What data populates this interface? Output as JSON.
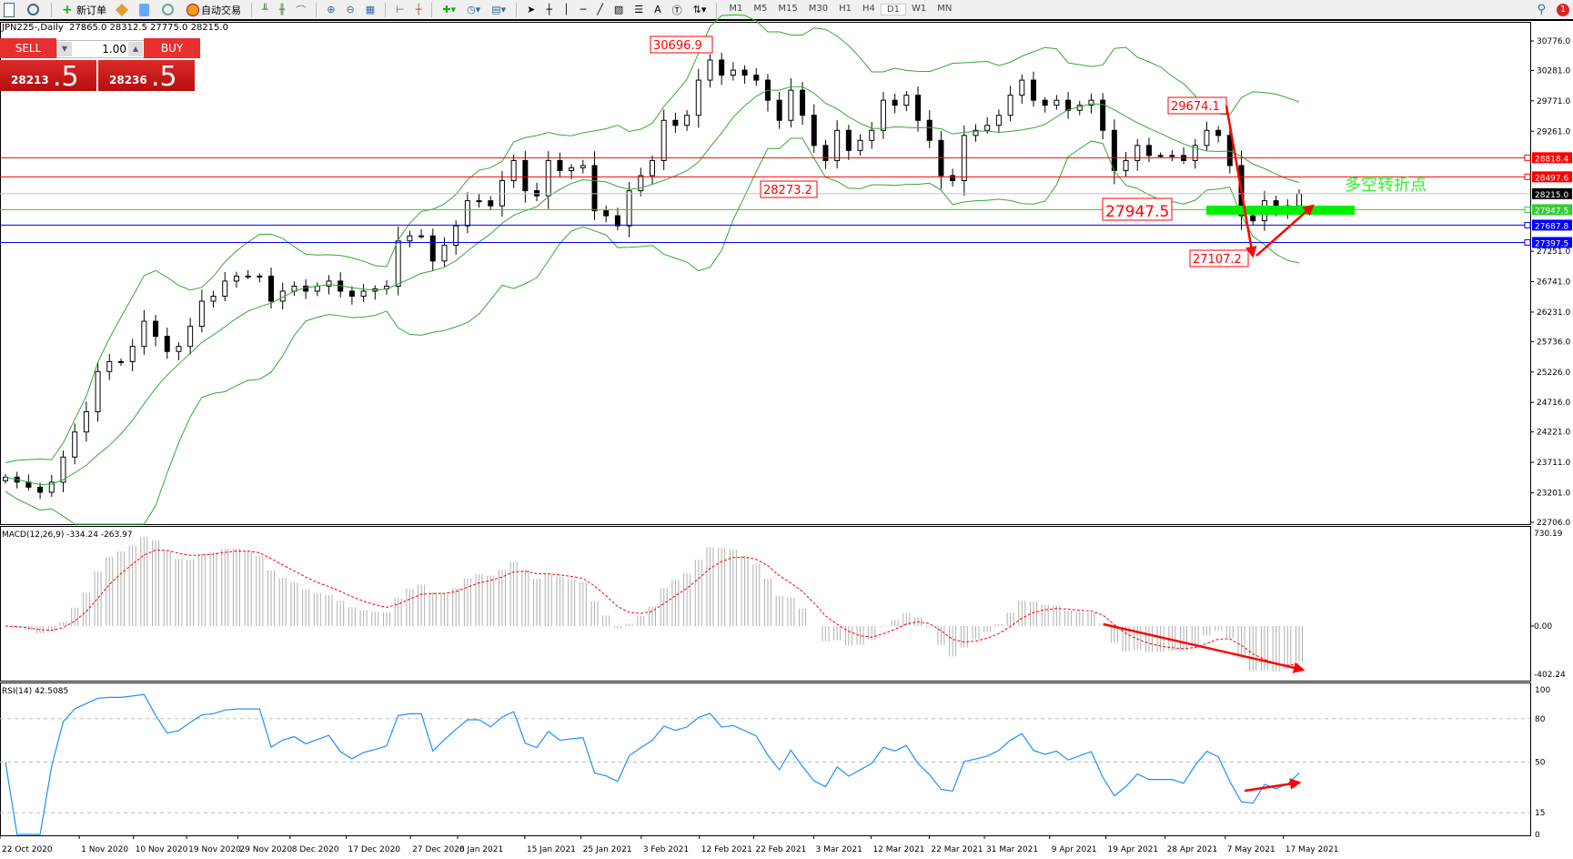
{
  "toolbar": {
    "new_order": "新订单",
    "auto_trading": "自动交易",
    "timeframes": [
      "M1",
      "M5",
      "M15",
      "M30",
      "H1",
      "H4",
      "D1",
      "W1",
      "MN"
    ],
    "active_timeframe": "D1",
    "notification_count": "1"
  },
  "chart_header": {
    "symbol_info": "JPN225-,Daily  27865.0 28312.5 27775.0 28215.0"
  },
  "trade_panel": {
    "sell_label": "SELL",
    "buy_label": "BUY",
    "lot": "1.00",
    "sell_price_main": "28213",
    "sell_price_big": ".5",
    "buy_price_main": "28236",
    "buy_price_big": ".5"
  },
  "chart_data": {
    "type": "candlestick",
    "symbol": "JPN225-",
    "timeframe": "Daily",
    "closes": [
      23463,
      23380,
      23295,
      23210,
      23378,
      23800,
      24220,
      24560,
      25234,
      25400,
      25400,
      25655,
      26076,
      25824,
      25570,
      25655,
      25992,
      26413,
      26497,
      26750,
      26834,
      26834,
      26834,
      26413,
      26581,
      26665,
      26581,
      26665,
      26750,
      26581,
      26497,
      26581,
      26620,
      26665,
      27424,
      27508,
      27508,
      27087,
      27350,
      27676,
      28097,
      28097,
      28012,
      28434,
      28771,
      28265,
      28180,
      28771,
      28602,
      28650,
      28687,
      27929,
      27845,
      27676,
      28265,
      28518,
      28771,
      29445,
      29361,
      29529,
      30119,
      30456,
      30203,
      30287,
      30203,
      30119,
      29782,
      29445,
      29950,
      29530,
      29024,
      28771,
      29277,
      28940,
      29108,
      29277,
      29782,
      29698,
      29866,
      29445,
      29108,
      28518,
      28434,
      29192,
      29277,
      29361,
      29529,
      29866,
      30119,
      29782,
      29698,
      29782,
      29613,
      29698,
      29782,
      29277,
      28603,
      28771,
      29024,
      28856,
      28856,
      28856,
      28771,
      29024,
      29277,
      29192,
      28687,
      27845,
      27761,
      28097,
      27929,
      28012,
      28215
    ],
    "last_close": 28215.0,
    "ylim": [
      22706,
      30776
    ],
    "price_ticks": [
      "30776.0",
      "30281.0",
      "29771.0",
      "29261.0",
      "27251.0",
      "26741.0",
      "26231.0",
      "25736.0",
      "25226.0",
      "24716.0",
      "24221.0",
      "23711.0",
      "23201.0",
      "22706.0"
    ],
    "date_ticks": [
      "22 Oct 2020",
      "1 Nov 2020",
      "10 Nov 2020",
      "19 Nov 2020",
      "29 Nov 2020",
      "8 Dec 2020",
      "17 Dec 2020",
      "27 Dec 2020",
      "6 Jan 2021",
      "15 Jan 2021",
      "25 Jan 2021",
      "3 Feb 2021",
      "12 Feb 2021",
      "22 Feb 2021",
      "3 Mar 2021",
      "12 Mar 2021",
      "22 Mar 2021",
      "31 Mar 2021",
      "9 Apr 2021",
      "19 Apr 2021",
      "28 Apr 2021",
      "7 May 2021",
      "17 May 2021"
    ],
    "horizontal_lines": [
      {
        "price": "28818.4",
        "color": "#ff0000"
      },
      {
        "price": "28497.6",
        "color": "#ff0000"
      },
      {
        "price": "28215.0",
        "color": "#000000",
        "line_color": "#c0c0c0"
      },
      {
        "price": "27947.5",
        "color": "#33cc33"
      },
      {
        "price": "27687.8",
        "color": "#0000ff"
      },
      {
        "price": "27397.5",
        "color": "#0000ff"
      }
    ],
    "annotations": [
      "30696.9",
      "28273.2",
      "29674.1",
      "27947.5",
      "27107.2"
    ],
    "annotation_text": "多空转折点",
    "overlay": "Bollinger Bands",
    "colors": {
      "candle": "#000000",
      "bands": "#33aa33",
      "annotation": "#ff0000",
      "highlight": "#00ee00"
    }
  },
  "macd": {
    "label": "MACD(12,26,9) -334.24 -263.97",
    "ticks": [
      "730.19",
      "0.00",
      "-402.24"
    ],
    "colors": {
      "histogram": "#b0b0b0",
      "signal": "#ff0000"
    }
  },
  "rsi": {
    "label": "RSI(14) 42.5085",
    "value": 42.5085,
    "ticks": [
      "100",
      "80",
      "50",
      "15",
      "0"
    ],
    "color": "#1e90ff"
  }
}
